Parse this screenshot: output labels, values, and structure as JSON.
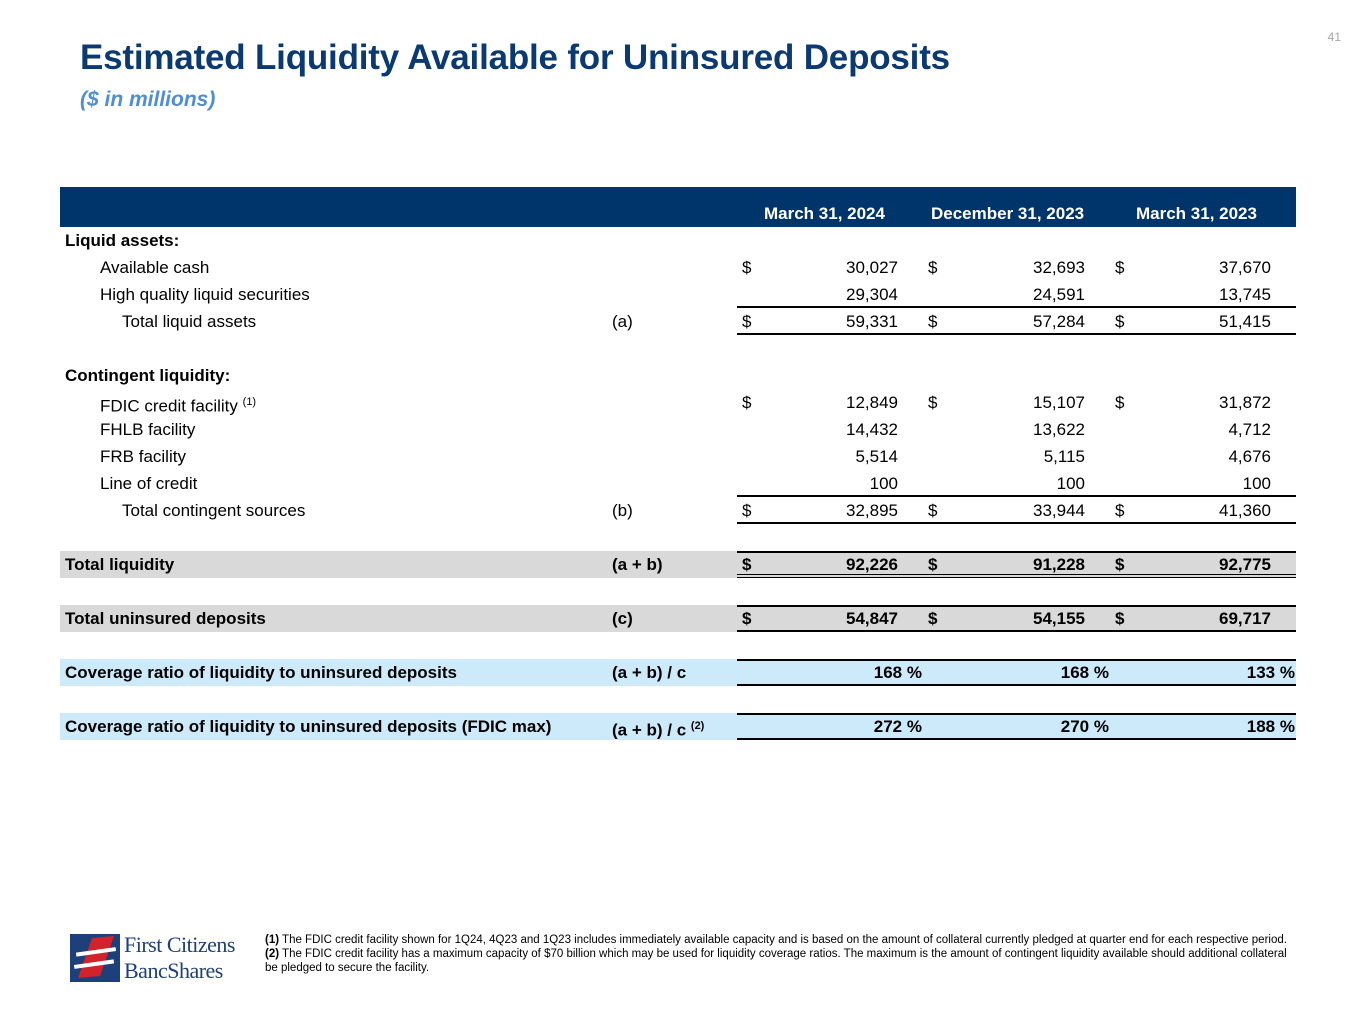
{
  "page_number": "41",
  "title": "Estimated Liquidity Available for Uninsured Deposits",
  "subtitle": "($ in millions)",
  "columns": [
    "March 31, 2024",
    "December 31, 2023",
    "March 31, 2023"
  ],
  "rows": [
    {
      "label": "Liquid assets:",
      "indent": 0,
      "bold": true
    },
    {
      "label": "Available cash",
      "indent": 1,
      "dollar": true,
      "values": [
        "30,027",
        "32,693",
        "37,670"
      ]
    },
    {
      "label": "High quality liquid securities",
      "indent": 1,
      "values": [
        "29,304",
        "24,591",
        "13,745"
      ],
      "rule": "bb"
    },
    {
      "label": "Total liquid assets",
      "indent": 2,
      "ref": "(a)",
      "dollar": true,
      "values": [
        "59,331",
        "57,284",
        "51,415"
      ],
      "rule": "bb"
    },
    {
      "label": ""
    },
    {
      "label": "Contingent liquidity:",
      "indent": 0,
      "bold": true
    },
    {
      "label": "FDIC credit facility",
      "sup": "(1)",
      "indent": 1,
      "dollar": true,
      "values": [
        "12,849",
        "15,107",
        "31,872"
      ]
    },
    {
      "label": "FHLB facility",
      "indent": 1,
      "values": [
        "14,432",
        "13,622",
        "4,712"
      ]
    },
    {
      "label": "FRB facility",
      "indent": 1,
      "values": [
        "5,514",
        "5,115",
        "4,676"
      ]
    },
    {
      "label": "Line of credit",
      "indent": 1,
      "values": [
        "100",
        "100",
        "100"
      ],
      "rule": "bb"
    },
    {
      "label": "Total contingent sources",
      "indent": 2,
      "ref": "(b)",
      "dollar": true,
      "values": [
        "32,895",
        "33,944",
        "41,360"
      ],
      "rule": "bb"
    },
    {
      "label": ""
    },
    {
      "label": "Total liquidity",
      "indent": 0,
      "bold": true,
      "band": "gray",
      "ref": "(a + b)",
      "dollar": true,
      "values": [
        "92,226",
        "91,228",
        "92,775"
      ],
      "rule": "bt db"
    },
    {
      "label": ""
    },
    {
      "label": "Total uninsured deposits",
      "indent": 0,
      "bold": true,
      "band": "gray",
      "ref": "(c)",
      "dollar": true,
      "values": [
        "54,847",
        "54,155",
        "69,717"
      ],
      "rule": "bt bb"
    },
    {
      "label": ""
    },
    {
      "label": "Coverage ratio of liquidity to uninsured deposits",
      "indent": 0,
      "bold": true,
      "band": "blue",
      "ref": "(a + b) / c",
      "percent": true,
      "values": [
        "168",
        "168",
        "133"
      ],
      "rule": "bt bb"
    },
    {
      "label": ""
    },
    {
      "label": "Coverage ratio of liquidity to uninsured deposits (FDIC max)",
      "indent": 0,
      "bold": true,
      "band": "blue",
      "ref": "(a + b) / c",
      "ref_sup": "(2)",
      "percent": true,
      "values": [
        "272",
        "270",
        "188"
      ],
      "rule": "bt bb"
    }
  ],
  "dollar_sign": "$",
  "percent_sign": "%",
  "footnotes": [
    {
      "marker": "(1)",
      "text": " The FDIC credit facility shown for 1Q24, 4Q23 and 1Q23 includes immediately available capacity and is based on the amount of collateral currently pledged at quarter end for each respective period."
    },
    {
      "marker": "(2)",
      "text": " The FDIC credit facility has a maximum capacity of $70 billion which may be used for liquidity coverage ratios. The maximum is the amount of contingent liquidity available should additional collateral be pledged to secure the facility."
    }
  ],
  "logo": {
    "line1": "First Citizens",
    "line2": "BancShares",
    "colors": {
      "blue": "#1d3f7a",
      "red": "#d2232a"
    }
  }
}
